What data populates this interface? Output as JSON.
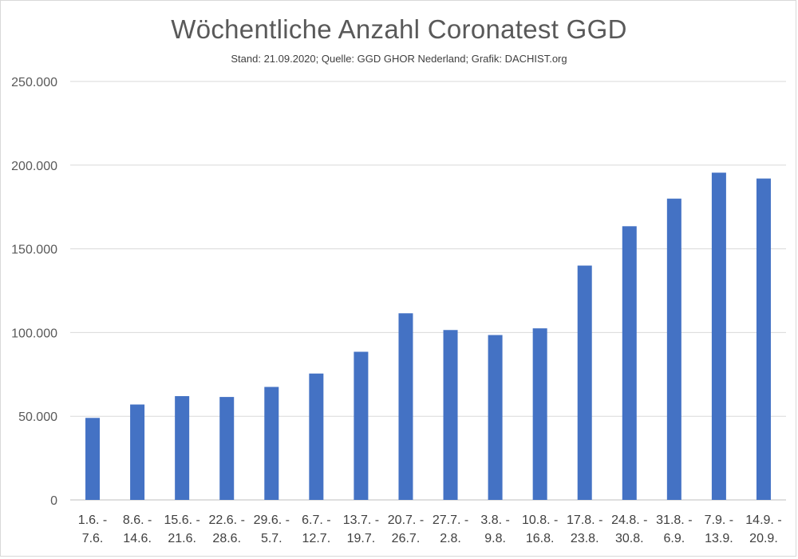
{
  "chart_data": {
    "type": "bar",
    "title": "Wöchentliche Anzahl Coronatest GGD",
    "subtitle": "Stand: 21.09.2020; Quelle: GGD GHOR Nederland; Grafik: DACHIST.org",
    "xlabel": "",
    "ylabel": "",
    "ylim": [
      0,
      250000
    ],
    "yticks": [
      0,
      50000,
      100000,
      150000,
      200000,
      250000
    ],
    "ytick_labels": [
      "0",
      "50.000",
      "100.000",
      "150.000",
      "200.000",
      "250.000"
    ],
    "grid": true,
    "bar_color": "#4472c4",
    "categories": [
      [
        "1.6. -",
        "7.6."
      ],
      [
        "8.6. -",
        "14.6."
      ],
      [
        "15.6. -",
        "21.6."
      ],
      [
        "22.6. -",
        "28.6."
      ],
      [
        "29.6. -",
        "5.7."
      ],
      [
        "6.7. -",
        "12.7."
      ],
      [
        "13.7. -",
        "19.7."
      ],
      [
        "20.7. -",
        "26.7."
      ],
      [
        "27.7. -",
        "2.8."
      ],
      [
        "3.8. -",
        "9.8."
      ],
      [
        "10.8. -",
        "16.8."
      ],
      [
        "17.8. -",
        "23.8."
      ],
      [
        "24.8. -",
        "30.8."
      ],
      [
        "31.8. -",
        "6.9."
      ],
      [
        "7.9. -",
        "13.9."
      ],
      [
        "14.9. -",
        "20.9."
      ]
    ],
    "values": [
      49000,
      57000,
      62000,
      61500,
      67500,
      75500,
      88500,
      111500,
      101500,
      98500,
      102500,
      140000,
      163500,
      180000,
      195500,
      192000
    ]
  }
}
